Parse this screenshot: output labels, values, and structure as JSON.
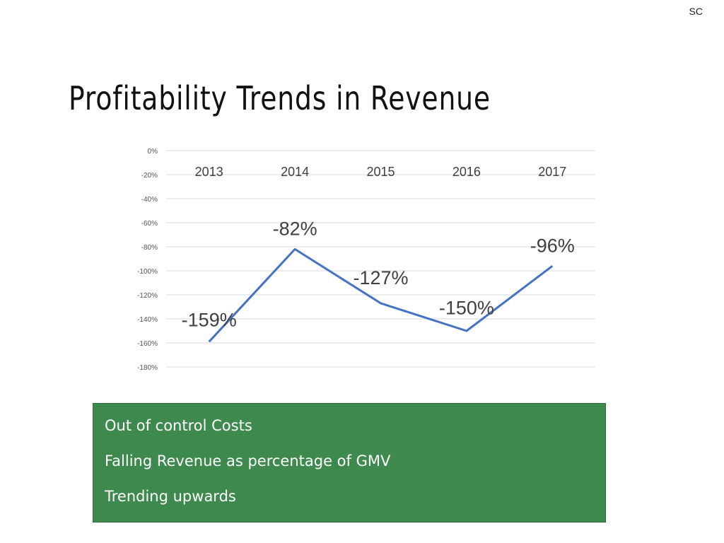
{
  "header": {
    "corner_mark": "SC",
    "title": "Profitability Trends in Revenue"
  },
  "chart_data": {
    "type": "line",
    "title": "",
    "xlabel": "",
    "ylabel": "",
    "categories": [
      "2013",
      "2014",
      "2015",
      "2016",
      "2017"
    ],
    "series": [
      {
        "values": [
          -159,
          -82,
          -127,
          -150,
          -96
        ],
        "data_labels": [
          "-159%",
          "-82%",
          "-127%",
          "-150%",
          "-96%"
        ],
        "color": "#4472c4"
      }
    ],
    "ylim": [
      -180,
      0
    ],
    "y_ticks": [
      0,
      -20,
      -40,
      -60,
      -80,
      -100,
      -120,
      -140,
      -160,
      -180
    ],
    "y_tick_labels": [
      "0%",
      "-20%",
      "-40%",
      "-60%",
      "-80%",
      "-100%",
      "-120%",
      "-140%",
      "-160%",
      "-180%"
    ],
    "grid": true,
    "legend": "none",
    "category_axis_position": "top"
  },
  "notes": {
    "items": [
      "Out of control Costs",
      "Falling Revenue as percentage of GMV",
      "Trending upwards"
    ],
    "background_color": "#3e8a4e"
  }
}
